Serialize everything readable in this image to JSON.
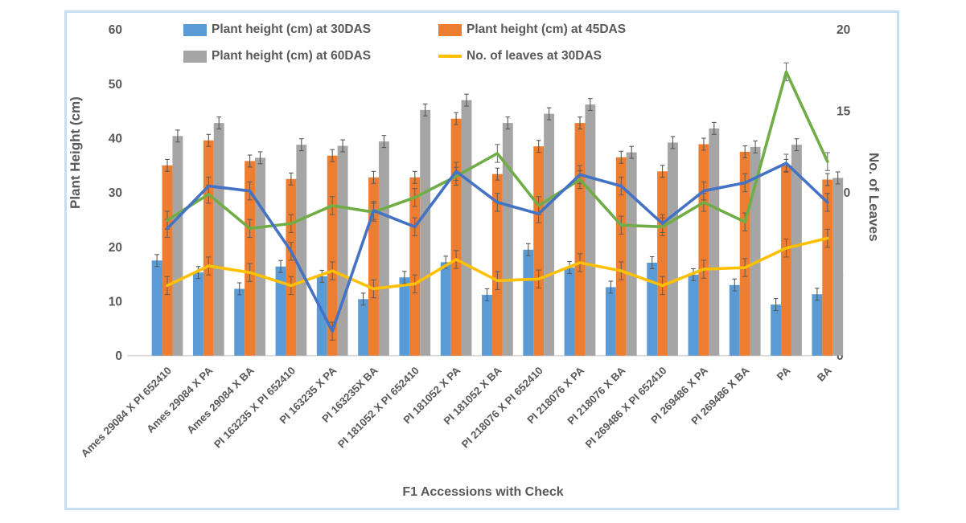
{
  "colors": {
    "border": "#c6def2",
    "text": "#595959",
    "axis_line": "#d9d9d9",
    "error_bar": "#595959"
  },
  "chart_data": {
    "type": "bar",
    "subtype": "combo-bar-line-dual-axis",
    "title": "",
    "xlabel": "F1 Accessions with Check",
    "ylabel_left": "Plant Height (cm)",
    "ylabel_right": "No. of Leaves",
    "y_left": {
      "min": 0,
      "max": 60,
      "ticks": [
        0,
        10,
        20,
        30,
        40,
        50,
        60
      ]
    },
    "y_right": {
      "min": 0,
      "max": 20,
      "ticks": [
        0,
        5,
        10,
        15,
        20
      ]
    },
    "grid": false,
    "legend_position": "top",
    "categories": [
      "Ames 29084 X PI 652410",
      "Ames 29084 X PA",
      "Ames 29084 X BA",
      "PI 163235 X PI 652410",
      "PI 163235 X PA",
      "PI 163235X BA",
      "PI 181052 X PI 652410",
      "PI 181052 X PA",
      "PI 181052 X BA",
      "PI 218076 X PI 652410",
      "PI 218076 X PA",
      "PI 218076 X BA",
      "PI 269486 X PI 652410",
      "PI 269486 X PA",
      "PI 269486 X BA",
      "PA",
      "BA"
    ],
    "bar_series": [
      {
        "name": "Plant height (cm) at 30DAS",
        "color": "#5b9bd5",
        "axis": "left",
        "values": [
          17.5,
          15.3,
          12.3,
          16.4,
          14.6,
          10.4,
          14.4,
          17.2,
          11.2,
          19.5,
          16.2,
          12.6,
          17.1,
          14.9,
          13.0,
          9.4,
          11.3
        ]
      },
      {
        "name": "Plant height (cm) at 45DAS",
        "color": "#ed7d31",
        "axis": "left",
        "values": [
          35.0,
          39.6,
          35.8,
          32.5,
          36.8,
          32.8,
          32.8,
          43.6,
          33.4,
          38.5,
          42.8,
          36.5,
          33.9,
          38.9,
          37.5,
          35.0,
          32.4
        ]
      },
      {
        "name": "Plant height (cm) at 60DAS",
        "color": "#a5a5a5",
        "axis": "left",
        "values": [
          40.4,
          42.8,
          36.4,
          38.8,
          38.6,
          39.4,
          45.2,
          47.0,
          42.8,
          44.5,
          46.2,
          37.4,
          39.2,
          41.8,
          38.4,
          38.8,
          32.7
        ]
      }
    ],
    "line_series": [
      {
        "name": "No. of leaves at 30DAS",
        "color": "#ffc000",
        "axis": "right",
        "in_legend": true,
        "values": [
          4.3,
          5.5,
          5.1,
          4.3,
          5.2,
          4.1,
          4.4,
          5.9,
          4.6,
          4.7,
          5.7,
          5.2,
          4.3,
          5.3,
          5.4,
          6.6,
          7.2
        ]
      },
      {
        "name": "",
        "color": "#70ad47",
        "axis": "right",
        "in_legend": false,
        "values": [
          8.3,
          9.9,
          7.8,
          8.1,
          9.2,
          8.8,
          9.7,
          11.0,
          12.4,
          9.2,
          10.8,
          8.0,
          7.9,
          9.4,
          8.2,
          17.4,
          11.9
        ]
      },
      {
        "name": "",
        "color": "#4472c4",
        "axis": "right",
        "in_legend": false,
        "values": [
          7.8,
          10.4,
          10.1,
          6.4,
          1.5,
          8.9,
          7.9,
          11.3,
          9.4,
          8.7,
          11.1,
          10.4,
          8.1,
          10.1,
          10.6,
          11.8,
          9.4
        ]
      }
    ],
    "bar_error_cm": 1.1,
    "line_error_units": 0.55
  }
}
